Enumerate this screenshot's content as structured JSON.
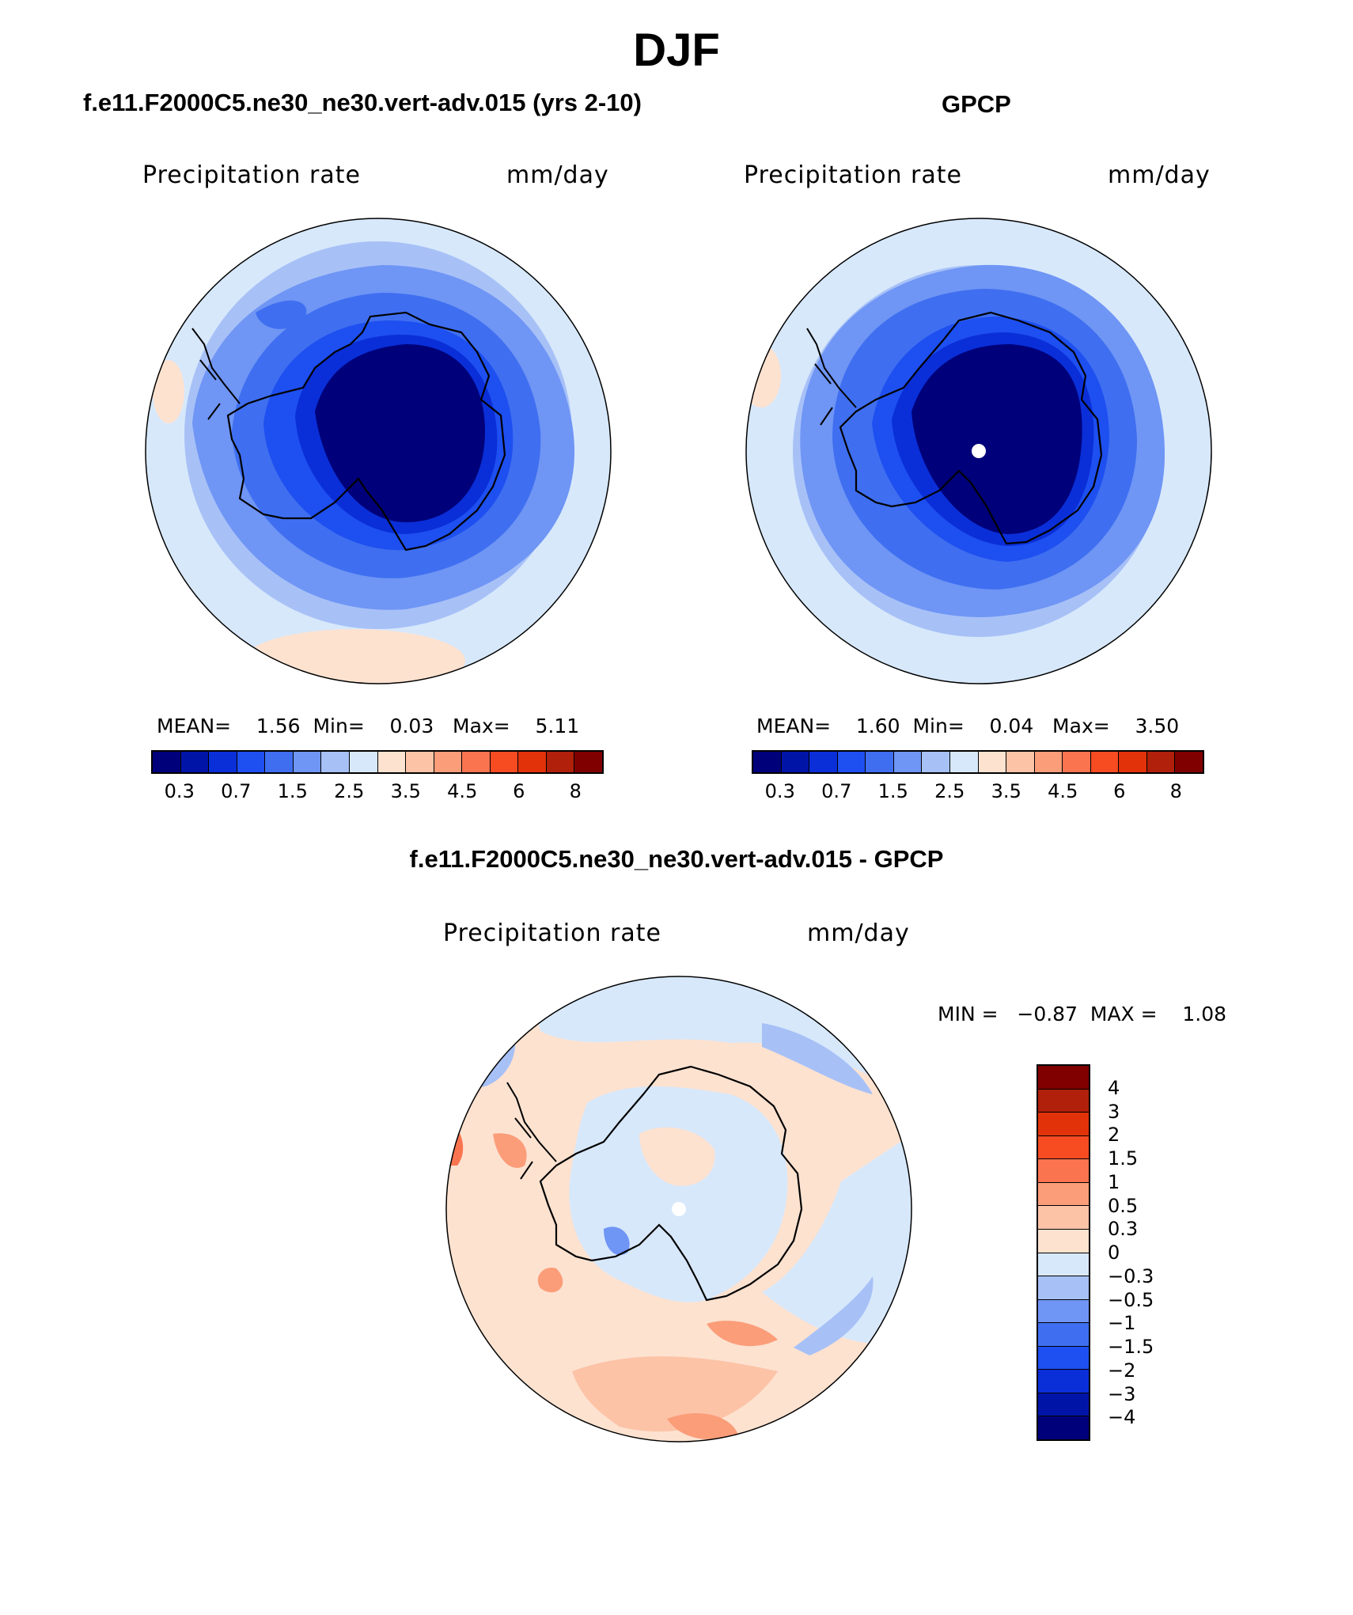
{
  "figure": {
    "title": "DJF"
  },
  "panel_model": {
    "title": "f.e11.F2000C5.ne30_ne30.vert-adv.015 (yrs 2-10)",
    "variable": "Precipitation rate",
    "units": "mm/day",
    "stats": "MEAN=    1.56  Min=    0.03   Max=    5.11",
    "mean": 1.56,
    "min": 0.03,
    "max": 5.11
  },
  "panel_obs": {
    "title": "GPCP",
    "variable": "Precipitation rate",
    "units": "mm/day",
    "stats": "MEAN=    1.60  Min=    0.04   Max=    3.50",
    "mean": 1.6,
    "min": 0.04,
    "max": 3.5
  },
  "panel_diff": {
    "title": "f.e11.F2000C5.ne30_ne30.vert-adv.015 - GPCP",
    "variable": "Precipitation rate",
    "units": "mm/day",
    "stats": "MIN =   −0.87  MAX =    1.08",
    "min": -0.87,
    "max": 1.08
  },
  "colorbar_abs": {
    "colors": [
      "#00007a",
      "#0015a8",
      "#0a2fd8",
      "#1e4ff0",
      "#3f6ff0",
      "#6f95f5",
      "#a7c1f7",
      "#d7e8fb",
      "#fde2d0",
      "#fcc3a7",
      "#fb9d79",
      "#fb7450",
      "#f74b22",
      "#e2320a",
      "#b0200a",
      "#800000"
    ],
    "labels": [
      "0.3",
      "0.7",
      "1.5",
      "2.5",
      "3.5",
      "4.5",
      "6",
      "8"
    ]
  },
  "colorbar_diff": {
    "colors": [
      "#800000",
      "#b0200a",
      "#e2320a",
      "#f74b22",
      "#fb7450",
      "#fb9d79",
      "#fcc3a7",
      "#fde2d0",
      "#d7e8fb",
      "#a7c1f7",
      "#6f95f5",
      "#3f6ff0",
      "#1e4ff0",
      "#0a2fd8",
      "#0015a8",
      "#00007a"
    ],
    "labels": [
      "4",
      "3",
      "2",
      "1.5",
      "1",
      "0.5",
      "0.3",
      "0",
      "−0.3",
      "−0.5",
      "−1",
      "−1.5",
      "−2",
      "−3",
      "−4"
    ]
  }
}
